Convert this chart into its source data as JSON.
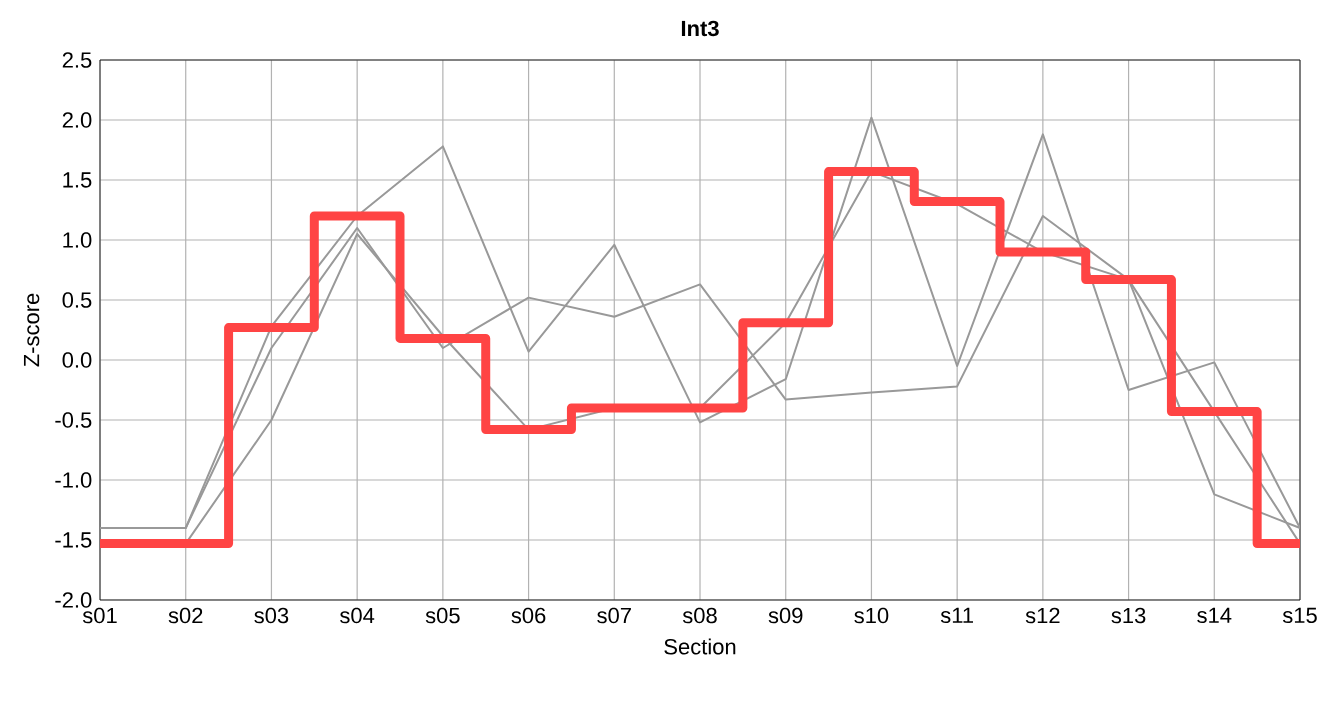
{
  "chart_data": {
    "type": "line",
    "title": "Int3",
    "xlabel": "Section",
    "ylabel": "Z-score",
    "categories": [
      "s01",
      "s02",
      "s03",
      "s04",
      "s05",
      "s06",
      "s07",
      "s08",
      "s09",
      "s10",
      "s11",
      "s12",
      "s13",
      "s14",
      "s15"
    ],
    "series": [
      {
        "color": "#999999",
        "values": [
          -1.4,
          -1.4,
          0.28,
          1.2,
          1.78,
          0.07,
          0.96,
          -0.52,
          -0.16,
          2.02,
          -0.05,
          1.88,
          -0.25,
          -0.02,
          -1.4
        ]
      },
      {
        "color": "#999999",
        "values": [
          -1.4,
          -1.4,
          0.1,
          1.1,
          0.1,
          0.52,
          0.36,
          0.63,
          -0.33,
          -0.27,
          -0.22,
          1.2,
          0.67,
          -1.12,
          -1.4
        ]
      },
      {
        "color": "#999999",
        "values": [
          -1.5,
          -1.53,
          -0.5,
          1.05,
          0.2,
          -0.58,
          -0.4,
          -0.4,
          0.31,
          1.57,
          1.3,
          0.9,
          0.67,
          -0.43,
          -1.53
        ]
      },
      {
        "type": "step",
        "color": "#ff4444",
        "values": [
          -1.53,
          -1.53,
          0.27,
          1.2,
          0.18,
          -0.58,
          -0.4,
          -0.4,
          0.31,
          1.57,
          1.32,
          0.9,
          0.67,
          -0.43,
          -1.53
        ]
      }
    ],
    "ylim": [
      -2.0,
      2.5
    ],
    "yticks": [
      {
        "value": -2.0,
        "label": "-2.0"
      },
      {
        "value": -1.5,
        "label": "-1.5"
      },
      {
        "value": -1.0,
        "label": "-1.0"
      },
      {
        "value": -0.5,
        "label": "-0.5"
      },
      {
        "value": 0.0,
        "label": "0.0"
      },
      {
        "value": 0.5,
        "label": "0.5"
      },
      {
        "value": 1.0,
        "label": "1.0"
      },
      {
        "value": 1.5,
        "label": "1.5"
      },
      {
        "value": 2.0,
        "label": "2.0"
      },
      {
        "value": 2.5,
        "label": "2.5"
      }
    ],
    "grid": true
  }
}
